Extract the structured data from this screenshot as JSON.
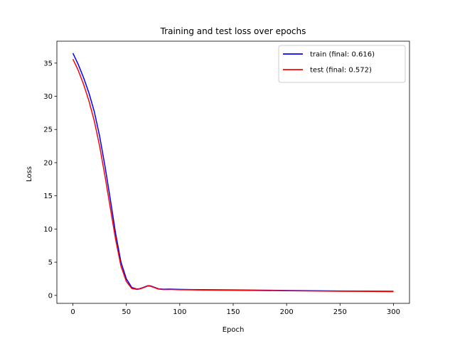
{
  "chart_data": {
    "type": "line",
    "title": "Training and test loss over epochs",
    "xlabel": "Epoch",
    "ylabel": "Loss",
    "xlim": [
      -15,
      315
    ],
    "ylim": [
      -1.2,
      38.3
    ],
    "xticks": [
      0,
      50,
      100,
      150,
      200,
      250,
      300
    ],
    "yticks": [
      0,
      5,
      10,
      15,
      20,
      25,
      30,
      35
    ],
    "grid": false,
    "legend_position": "top-right",
    "series": [
      {
        "name": "train",
        "legend_label": "train (final: 0.616)",
        "color": "#0000ff",
        "final": 0.616,
        "x": [
          0,
          5,
          10,
          15,
          20,
          25,
          30,
          35,
          40,
          45,
          50,
          55,
          60,
          62,
          65,
          70,
          72,
          75,
          80,
          85,
          90,
          100,
          110,
          120,
          150,
          200,
          250,
          300
        ],
        "y": [
          36.5,
          34.8,
          32.8,
          30.5,
          27.7,
          24.0,
          19.5,
          14.5,
          9.3,
          5.0,
          2.5,
          1.2,
          0.95,
          1.0,
          1.15,
          1.45,
          1.45,
          1.3,
          1.0,
          0.93,
          0.95,
          0.9,
          0.88,
          0.86,
          0.82,
          0.74,
          0.66,
          0.616
        ]
      },
      {
        "name": "test",
        "legend_label": "test (final: 0.572)",
        "color": "#ff0000",
        "final": 0.572,
        "x": [
          0,
          5,
          10,
          15,
          20,
          25,
          30,
          35,
          40,
          45,
          50,
          55,
          60,
          62,
          65,
          70,
          72,
          75,
          80,
          85,
          90,
          100,
          110,
          120,
          150,
          200,
          250,
          300
        ],
        "y": [
          35.6,
          33.9,
          31.8,
          29.3,
          26.3,
          22.5,
          18.0,
          13.2,
          8.4,
          4.4,
          2.1,
          1.05,
          0.9,
          0.95,
          1.1,
          1.4,
          1.4,
          1.25,
          0.95,
          0.88,
          0.9,
          0.85,
          0.83,
          0.81,
          0.77,
          0.7,
          0.62,
          0.572
        ]
      }
    ]
  }
}
